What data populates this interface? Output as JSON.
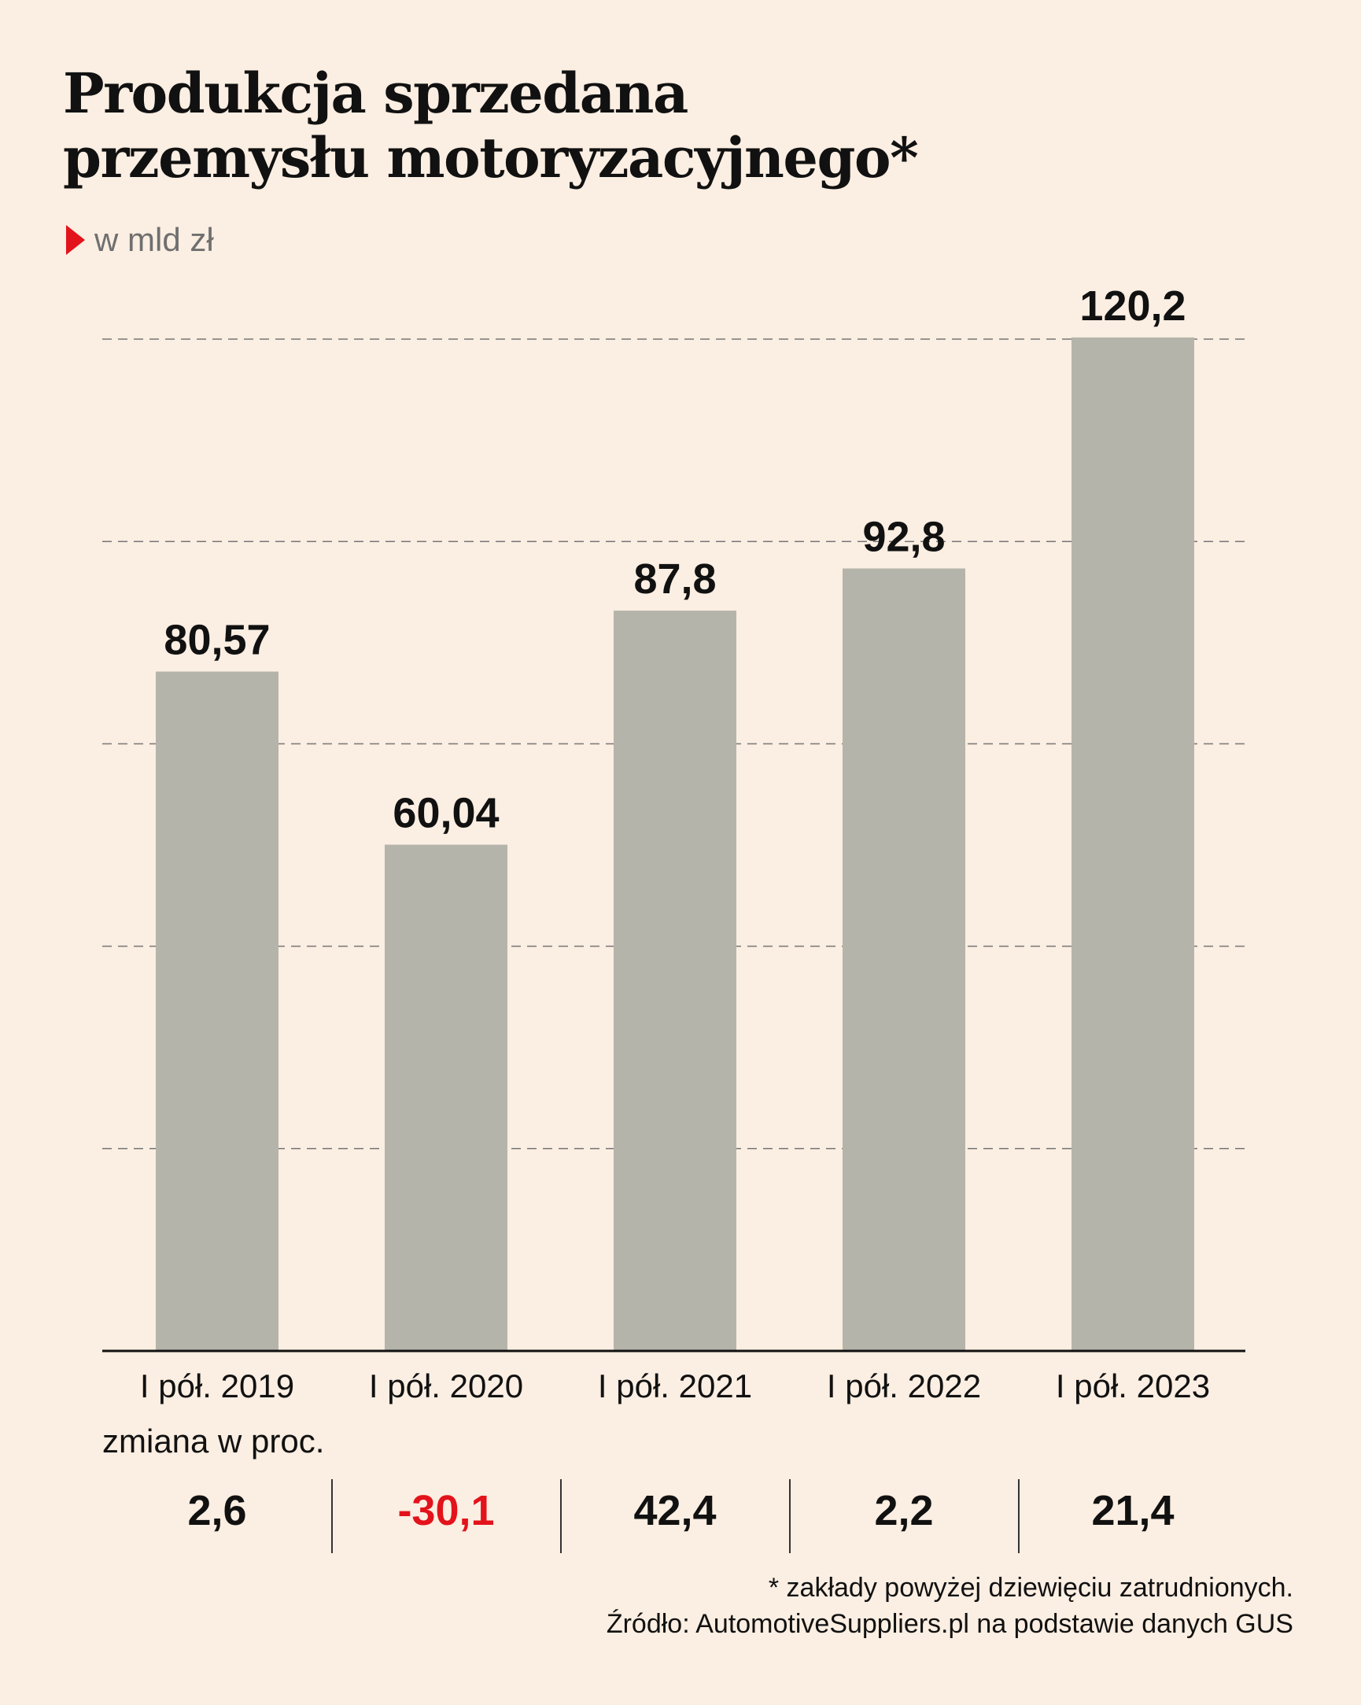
{
  "header": {
    "title_line1": "Produkcja sprzedana",
    "title_line2": "przemysłu motoryzacyjnego*",
    "subtitle": "w mld zł"
  },
  "colors": {
    "background": "#fbeee2",
    "bar": "#b5b4aa",
    "accent": "#e3131b",
    "text": "#111111"
  },
  "chart_data": {
    "type": "bar",
    "categories": [
      "I pół. 2019",
      "I pół. 2020",
      "I pół. 2021",
      "I pół. 2022",
      "I pół. 2023"
    ],
    "values": [
      80.57,
      60.04,
      87.8,
      92.8,
      120.2
    ],
    "value_labels": [
      "80,57",
      "60,04",
      "87,8",
      "92,8",
      "120,2"
    ],
    "ylim": [
      0,
      120
    ],
    "grid": true,
    "grid_style": "dashed",
    "xlabel": "",
    "ylabel": ""
  },
  "changes": {
    "label": "zmiana w proc.",
    "values": [
      "2,6",
      "-30,1",
      "42,4",
      "2,2",
      "21,4"
    ],
    "numeric": [
      2.6,
      -30.1,
      42.4,
      2.2,
      21.4
    ]
  },
  "footnote": {
    "note": "* zakłady powyżej dziewięciu zatrudnionych.",
    "source": "Źródło: AutomotiveSuppliers.pl na podstawie danych GUS"
  }
}
